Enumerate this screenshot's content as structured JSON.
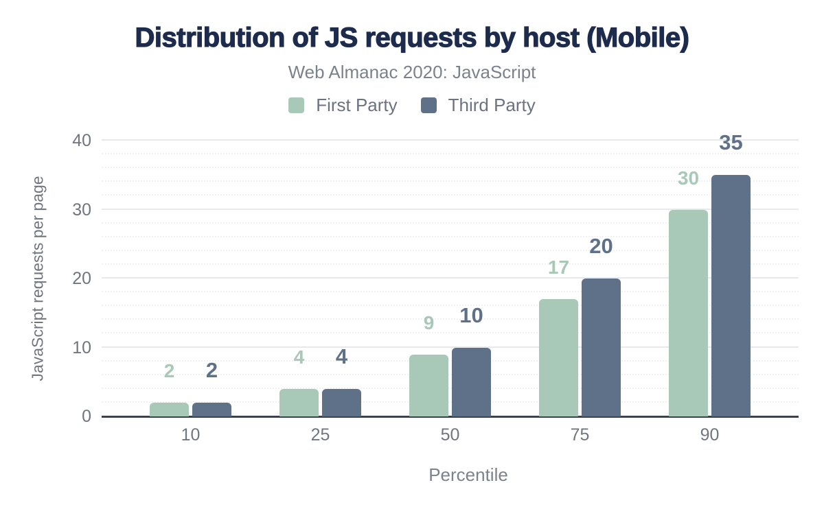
{
  "header": {
    "title": "Distribution of JS requests by host (Mobile)",
    "subtitle": "Web Almanac 2020: JavaScript"
  },
  "chart_data": {
    "type": "bar",
    "title": "Distribution of JS requests by host (Mobile)",
    "subtitle": "Web Almanac 2020: JavaScript",
    "categories": [
      "10",
      "25",
      "50",
      "75",
      "90"
    ],
    "series": [
      {
        "name": "First Party",
        "color": "#A8C9B8",
        "values": [
          2,
          4,
          9,
          17,
          30
        ]
      },
      {
        "name": "Third Party",
        "color": "#5F7189",
        "values": [
          2,
          4,
          10,
          20,
          35
        ]
      }
    ],
    "xlabel": "Percentile",
    "ylabel": "JavaScript requests per page",
    "ylim": [
      0,
      40
    ],
    "yticks": [
      0,
      10,
      20,
      30,
      40
    ],
    "minor_grid_step": 2,
    "grid": true,
    "legend_position": "top"
  },
  "colors": {
    "title": "#1D2B4D",
    "subtitle_text": "#7B828C",
    "axis_text": "#70767F",
    "legend_text": "#6B7280",
    "major_gridline": "#E8E9EC",
    "minor_gridline": "#F1F1F4",
    "baseline": "#3A414D",
    "background": "#FFFFFF",
    "first_party": "#A8C9B8",
    "third_party": "#5F7189"
  }
}
